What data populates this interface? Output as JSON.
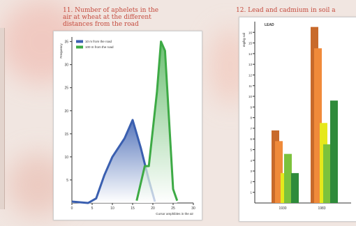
{
  "titles": {
    "left": "11. Number of aphelets in the\nair at wheat at the different\ndistances from the road",
    "right": "12. Lead and cadmium in soil a"
  },
  "colors": {
    "blue": "#3a5fb0",
    "green": "#3daa45",
    "title_red": "#c44a3d",
    "lead_dark": "#c86a2b",
    "lead_light": "#f08a3a",
    "cad_yellow": "#e6e81c",
    "cad_green": "#7cc23c",
    "dark_green": "#2e8b3a"
  },
  "chart_data": [
    {
      "type": "area",
      "title": "",
      "ylabel": "Frequency",
      "xlabel": "Cursor amphibles in the air",
      "xlim": [
        0,
        30
      ],
      "ylim": [
        0,
        36
      ],
      "x_ticks": [
        "0",
        "5",
        "10",
        "15",
        "20",
        "25",
        "30"
      ],
      "y_ticks": [
        "5",
        "10",
        "15",
        "20",
        "25",
        "30",
        "35"
      ],
      "legend": "top-left",
      "series": [
        {
          "name": "10 m from the road",
          "color": "blue",
          "points": [
            [
              0,
              0.3
            ],
            [
              4,
              0
            ],
            [
              6,
              1
            ],
            [
              8,
              6
            ],
            [
              10,
              10
            ],
            [
              13,
              14
            ],
            [
              15,
              18
            ],
            [
              17,
              12
            ],
            [
              19,
              5
            ],
            [
              20.5,
              0.3
            ]
          ]
        },
        {
          "name": "100 m from the road",
          "color": "green",
          "points": [
            [
              16,
              0.5
            ],
            [
              18,
              8
            ],
            [
              19,
              8
            ],
            [
              21,
              24
            ],
            [
              22,
              35
            ],
            [
              23,
              33
            ],
            [
              25,
              3
            ],
            [
              26,
              0.5
            ]
          ]
        }
      ]
    },
    {
      "type": "bar",
      "title": "",
      "ylabel": "mg/kg soil",
      "label_top": "LEAD",
      "categories": [
        "1930",
        "1983"
      ],
      "ylim": [
        0,
        17
      ],
      "y_ticks": [
        "1",
        "2",
        "3",
        "4",
        "5",
        "6",
        "7",
        "8",
        "9",
        "10",
        "11",
        "12",
        "13",
        "14",
        "15",
        "16"
      ],
      "series": [
        {
          "color": "lead_dark",
          "values": [
            6.8,
            16.5
          ]
        },
        {
          "color": "lead_light",
          "values": [
            5.8,
            14.5
          ]
        },
        {
          "color": "cad_yellow",
          "values": [
            2.8,
            7.5
          ]
        },
        {
          "color": "cad_green",
          "values": [
            4.6,
            5.5
          ]
        },
        {
          "color": "dark_green",
          "values": [
            2.8,
            9.6
          ]
        }
      ]
    }
  ]
}
